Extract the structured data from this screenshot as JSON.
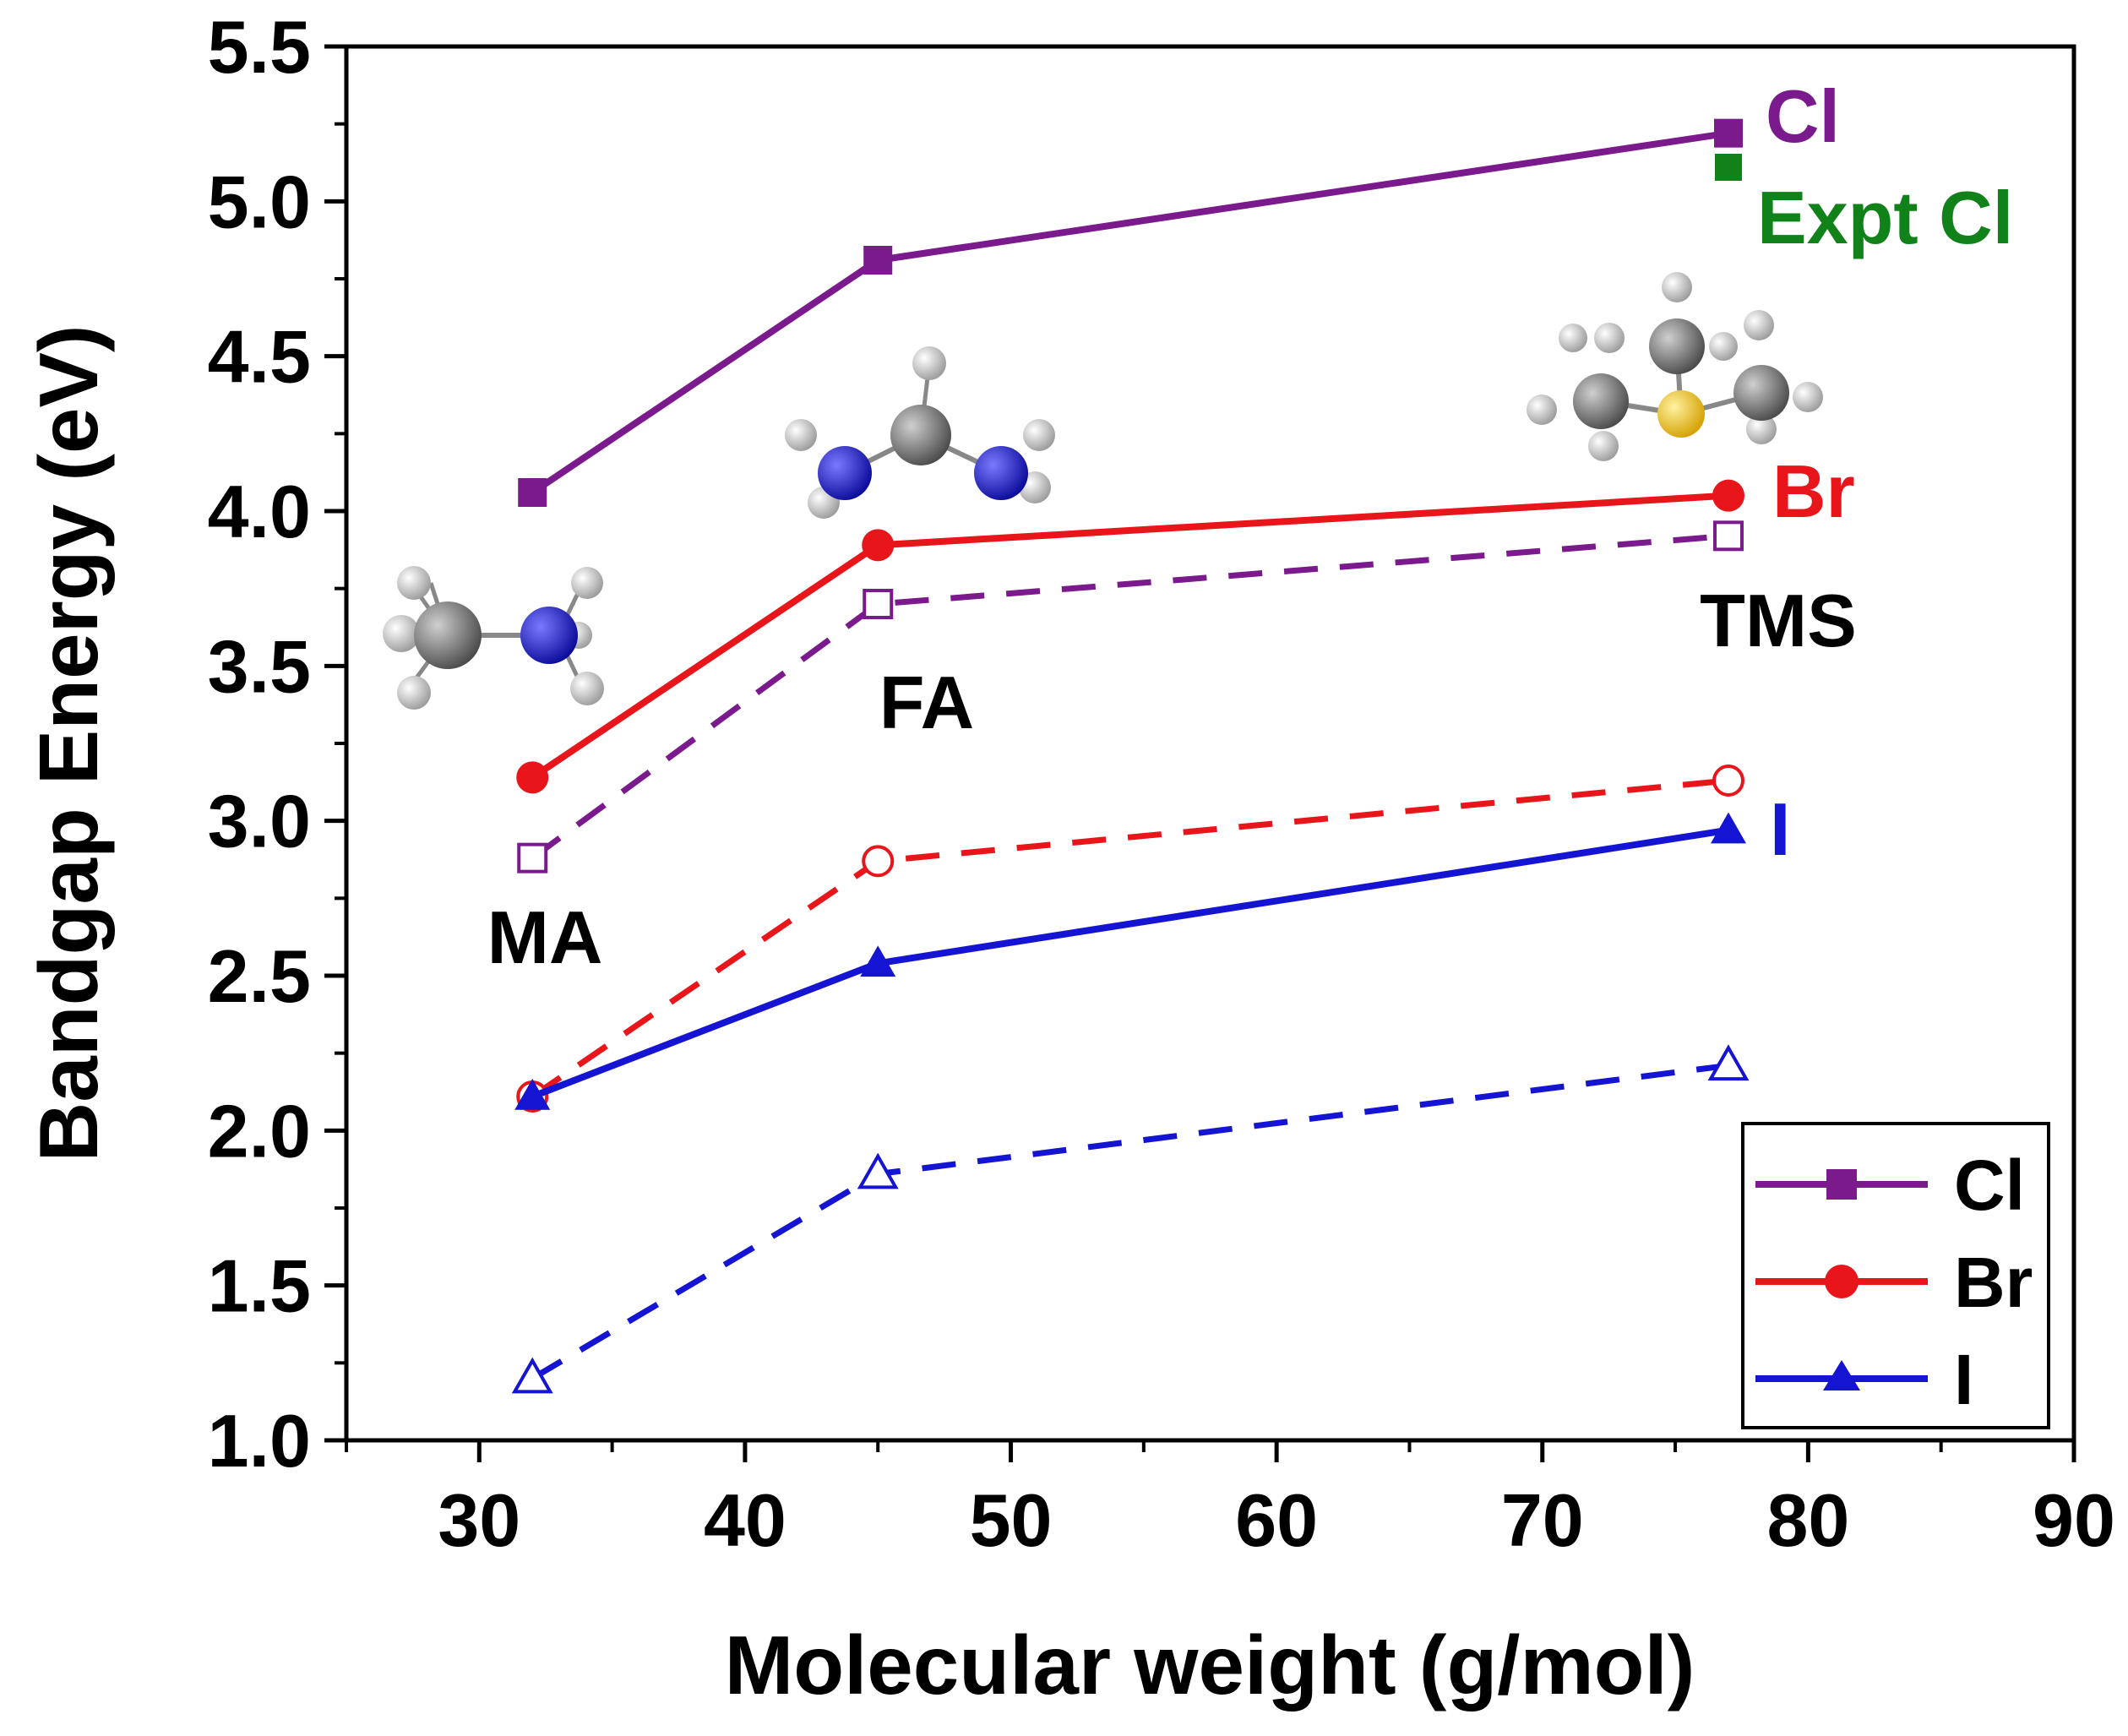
{
  "chart_data": {
    "type": "line",
    "title": "",
    "xlabel": "Molecular weight (g/mol)",
    "ylabel": "Bandgap Energy (eV)",
    "xlim": [
      25,
      90
    ],
    "ylim": [
      1.0,
      5.5
    ],
    "xticks": [
      "30",
      "40",
      "50",
      "60",
      "70",
      "80",
      "90"
    ],
    "yticks": [
      "1.0",
      "1.5",
      "2.0",
      "2.5",
      "3.0",
      "3.5",
      "4.0",
      "4.5",
      "5.0",
      "5.5"
    ],
    "x": [
      32,
      45,
      77
    ],
    "series": [
      {
        "name": "Cl",
        "color": "#7a1a8c",
        "marker": "square",
        "filled": true,
        "dashed": false,
        "values": [
          4.06,
          4.81,
          5.22
        ]
      },
      {
        "name": "Br",
        "color": "#e8161b",
        "marker": "circle",
        "filled": true,
        "dashed": false,
        "values": [
          3.14,
          3.89,
          4.05
        ]
      },
      {
        "name": "I",
        "color": "#1414d2",
        "marker": "triangle",
        "filled": true,
        "dashed": false,
        "values": [
          2.11,
          2.54,
          2.97
        ]
      },
      {
        "name": "Cl (dashed)",
        "color": "#7a1a8c",
        "marker": "square",
        "filled": false,
        "dashed": true,
        "values": [
          2.88,
          3.7,
          3.92
        ]
      },
      {
        "name": "Br (dashed)",
        "color": "#e8161b",
        "marker": "circle",
        "filled": false,
        "dashed": true,
        "values": [
          2.11,
          2.87,
          3.13
        ]
      },
      {
        "name": "I (dashed)",
        "color": "#1414d2",
        "marker": "triangle",
        "filled": false,
        "dashed": true,
        "values": [
          1.2,
          1.86,
          2.21
        ]
      }
    ],
    "experimental_point": {
      "label": "Expt Cl",
      "x": 77,
      "y": 5.11,
      "color": "#11821a"
    },
    "series_end_labels": [
      {
        "text": "Cl",
        "color": "#7a1a8c"
      },
      {
        "text": "Br",
        "color": "#e8161b"
      },
      {
        "text": "I",
        "color": "#1414d2"
      }
    ],
    "cation_labels": [
      "MA",
      "FA",
      "TMS"
    ],
    "legend": {
      "position": "bottom-right",
      "entries": [
        "Cl",
        "Br",
        "I"
      ]
    },
    "molecule_icons": [
      "methylammonium-molecule-icon",
      "formamidinium-molecule-icon",
      "trimethylsulfonium-molecule-icon"
    ]
  }
}
